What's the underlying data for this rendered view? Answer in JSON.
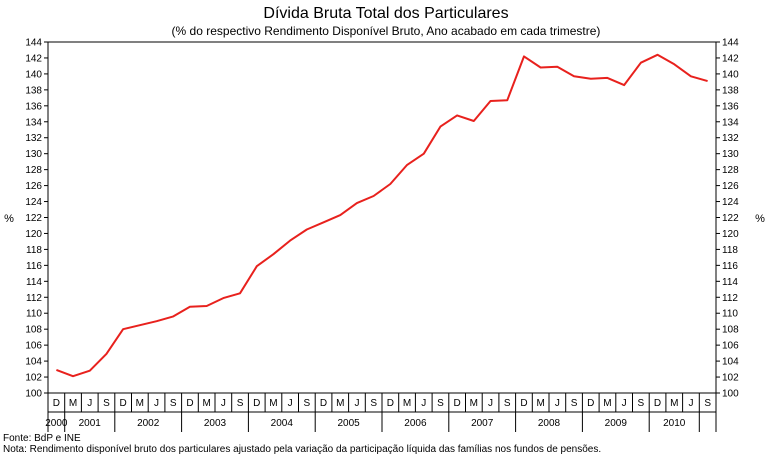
{
  "chart_data": {
    "type": "line",
    "title": "Dívida Bruta Total dos Particulares",
    "subtitle": "(% do respectivo Rendimento Disponível Bruto, Ano acabado em cada trimestre)",
    "ylabel_left": "%",
    "ylabel_right": "%",
    "ylim": [
      100,
      144
    ],
    "ytick_step": 2,
    "quarter_labels": [
      "D",
      "M",
      "J",
      "S",
      "D",
      "M",
      "J",
      "S",
      "D",
      "M",
      "J",
      "S",
      "D",
      "M",
      "J",
      "S",
      "D",
      "M",
      "J",
      "S",
      "D",
      "M",
      "J",
      "S",
      "D",
      "M",
      "J",
      "S",
      "D",
      "M",
      "J",
      "S",
      "D",
      "M",
      "J",
      "S",
      "D",
      "M",
      "J",
      "S"
    ],
    "years": [
      {
        "label": "2000",
        "start": 0,
        "end": 1
      },
      {
        "label": "2001",
        "start": 1,
        "end": 4
      },
      {
        "label": "2002",
        "start": 4,
        "end": 8
      },
      {
        "label": "2003",
        "start": 8,
        "end": 12
      },
      {
        "label": "2004",
        "start": 12,
        "end": 16
      },
      {
        "label": "2005",
        "start": 16,
        "end": 20
      },
      {
        "label": "2006",
        "start": 20,
        "end": 24
      },
      {
        "label": "2007",
        "start": 24,
        "end": 28
      },
      {
        "label": "2008",
        "start": 28,
        "end": 32
      },
      {
        "label": "2009",
        "start": 32,
        "end": 36
      },
      {
        "label": "2010",
        "start": 36,
        "end": 39
      }
    ],
    "series": [
      {
        "name": "Dívida Bruta Total dos Particulares",
        "color": "#e8211d",
        "values": [
          102.9,
          102.1,
          102.8,
          104.9,
          108.0,
          108.5,
          109.0,
          109.6,
          110.8,
          110.9,
          111.9,
          112.5,
          115.9,
          117.4,
          119.1,
          120.5,
          121.4,
          122.3,
          123.8,
          124.7,
          126.2,
          128.6,
          130.0,
          133.4,
          134.8,
          134.1,
          136.6,
          136.7,
          142.2,
          140.8,
          140.9,
          139.7,
          139.4,
          139.5,
          138.6,
          141.4,
          142.4,
          141.2,
          139.7,
          139.1
        ]
      }
    ]
  },
  "footer": {
    "source": "Fonte: BdP e INE",
    "note": "Nota: Rendimento disponível bruto dos particulares ajustado pela variação da participação líquida das famílias nos fundos de pensões."
  }
}
